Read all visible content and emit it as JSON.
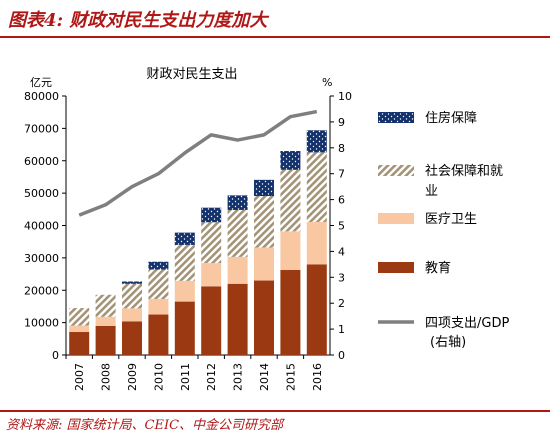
{
  "figure": {
    "title": "图表4:  财政对民生支出力度加大",
    "source": "资料来源: 国家统计局、CEIC、中金公司研究部"
  },
  "colors": {
    "education": "#9b3a12",
    "medical": "#f9c8a2",
    "social": "#c2b79a",
    "housing": "#13326c",
    "line": "#7f7f7f",
    "brand_red": "#b01818"
  },
  "chart_data": {
    "type": "bar",
    "stacked": true,
    "title": "财政对民生支出",
    "categories": [
      "2007",
      "2008",
      "2009",
      "2010",
      "2011",
      "2012",
      "2013",
      "2014",
      "2015",
      "2016"
    ],
    "series": [
      {
        "name": "教育",
        "color_key": "education",
        "values": [
          7100,
          9000,
          10400,
          12500,
          16500,
          21200,
          22000,
          23000,
          26300,
          28000
        ]
      },
      {
        "name": "医疗卫生",
        "color_key": "medical",
        "values": [
          2000,
          2800,
          4000,
          4800,
          6400,
          7200,
          8300,
          10200,
          11900,
          13100
        ]
      },
      {
        "name": "社会保障和就业",
        "color_key": "social",
        "values": [
          5400,
          6800,
          7600,
          9100,
          11100,
          12600,
          14500,
          15900,
          19000,
          21500
        ]
      },
      {
        "name": "住房保障",
        "color_key": "housing",
        "values": [
          0,
          0,
          700,
          2400,
          3800,
          4500,
          4500,
          5000,
          5800,
          6800
        ]
      }
    ],
    "line_series": {
      "name": "四项支出/GDP",
      "name_line2": "(右轴)",
      "axis": "right",
      "values": [
        5.4,
        5.8,
        6.5,
        7.0,
        7.8,
        8.5,
        8.3,
        8.5,
        9.2,
        9.4
      ]
    },
    "y_left": {
      "unit": "亿元",
      "min": 0,
      "max": 80000,
      "ticks": [
        "0",
        "10000",
        "20000",
        "30000",
        "40000",
        "50000",
        "60000",
        "70000",
        "80000"
      ]
    },
    "y_right": {
      "unit": "%",
      "min": 0,
      "max": 10,
      "ticks": [
        "0",
        "1",
        "2",
        "3",
        "4",
        "5",
        "6",
        "7",
        "8",
        "9",
        "10"
      ]
    },
    "legend_order": [
      "住房保障",
      "社会保障和就业",
      "医疗卫生",
      "教育",
      "四项支出/GDP"
    ]
  }
}
